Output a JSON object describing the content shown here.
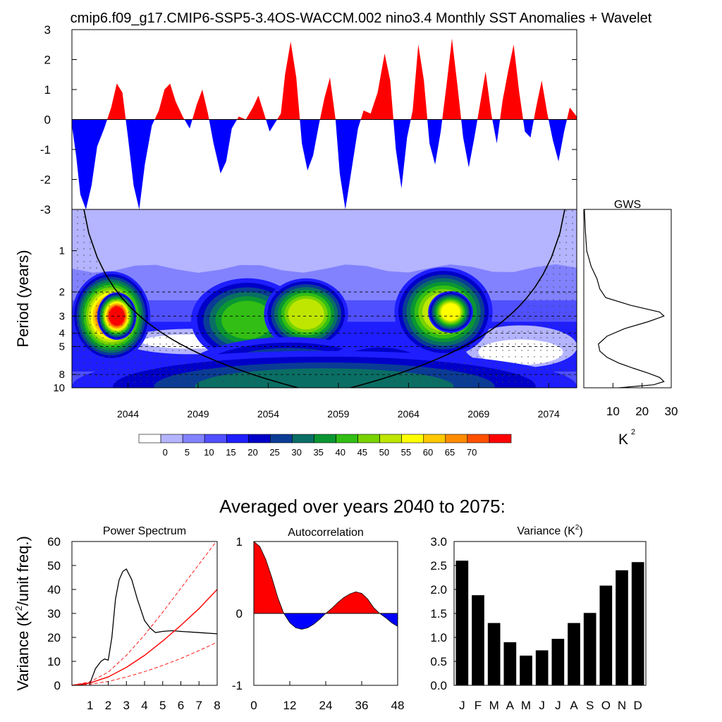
{
  "figure": {
    "title": "cmip6.f09_g17.CMIP6-SSP5-3.4OS-WACCM.002 nino3.4 Monthly SST Anomalies + Wavelet",
    "bottom_title": "Averaged over years 2040 to 2075:"
  },
  "chart_data": [
    {
      "id": "anomaly",
      "type": "area",
      "title": "Monthly SST Anomalies",
      "xlim": [
        2040,
        2076
      ],
      "ylim": [
        -3,
        3
      ],
      "yticks": [
        "3",
        "2",
        "1",
        "0",
        "-1",
        "-2",
        "-3"
      ],
      "ytick_values": [
        3,
        2,
        1,
        0,
        -1,
        -2,
        -3
      ],
      "positive_color": "#ff0000",
      "negative_color": "#0000ff",
      "x": [
        2040.0,
        2040.3,
        2040.6,
        2041.0,
        2041.4,
        2041.8,
        2042.3,
        2042.8,
        2043.2,
        2043.6,
        2044.0,
        2044.4,
        2044.8,
        2045.2,
        2045.7,
        2046.2,
        2046.6,
        2047.0,
        2047.4,
        2047.9,
        2048.4,
        2048.9,
        2049.3,
        2049.7,
        2050.1,
        2050.6,
        2051.0,
        2051.4,
        2051.9,
        2052.4,
        2052.9,
        2053.3,
        2053.7,
        2054.1,
        2054.5,
        2054.9,
        2055.2,
        2055.6,
        2056.0,
        2056.4,
        2056.8,
        2057.2,
        2057.6,
        2058.0,
        2058.4,
        2058.8,
        2059.1,
        2059.5,
        2060.0,
        2060.4,
        2060.8,
        2061.3,
        2061.8,
        2062.3,
        2062.7,
        2063.1,
        2063.5,
        2063.9,
        2064.3,
        2064.7,
        2065.1,
        2065.5,
        2065.9,
        2066.3,
        2066.7,
        2067.1,
        2067.5,
        2067.9,
        2068.3,
        2068.7,
        2069.1,
        2069.5,
        2069.9,
        2070.3,
        2070.7,
        2071.1,
        2071.5,
        2071.9,
        2072.3,
        2072.7,
        2073.1,
        2073.5,
        2073.9,
        2074.3,
        2074.7,
        2075.1,
        2075.5,
        2076.0
      ],
      "values": [
        -0.2,
        -1.2,
        -2.5,
        -3.0,
        -2.2,
        -0.9,
        -0.3,
        0.4,
        1.2,
        0.9,
        -0.6,
        -2.2,
        -3.0,
        -1.5,
        -0.2,
        0.3,
        1.0,
        1.2,
        0.6,
        0.1,
        -0.3,
        0.5,
        1.0,
        0.2,
        -0.8,
        -1.8,
        -1.4,
        -0.3,
        0.1,
        0.0,
        0.4,
        0.8,
        0.2,
        -0.4,
        -0.1,
        0.2,
        1.5,
        2.6,
        1.4,
        -0.8,
        -1.7,
        -1.2,
        -0.2,
        0.7,
        1.4,
        0.0,
        -1.8,
        -3.0,
        -1.5,
        -0.3,
        0.3,
        0.2,
        0.9,
        2.2,
        1.3,
        -1.0,
        -2.3,
        -0.6,
        0.3,
        2.5,
        1.3,
        -0.8,
        -1.5,
        -0.4,
        1.1,
        2.7,
        1.1,
        -0.6,
        -1.6,
        -0.6,
        0.5,
        1.6,
        0.2,
        -0.8,
        0.6,
        1.6,
        2.5,
        0.9,
        -0.4,
        -0.6,
        0.4,
        1.3,
        0.2,
        -0.7,
        -1.4,
        -0.4,
        0.4,
        0.1
      ]
    },
    {
      "id": "wavelet",
      "type": "heatmap",
      "ylabel": "Period (years)",
      "xlim": [
        2040,
        2076
      ],
      "xticks": [
        "2044",
        "2049",
        "2054",
        "2059",
        "2064",
        "2069",
        "2074"
      ],
      "xtick_values": [
        2044,
        2049,
        2054,
        2059,
        2064,
        2069,
        2074
      ],
      "yticks": [
        "1",
        "2",
        "3",
        "4",
        "5",
        "8",
        "10"
      ],
      "ytick_values": [
        1,
        2,
        3,
        4,
        5,
        8,
        10
      ],
      "period_range": [
        0.5,
        10
      ],
      "cone_of_influence": true,
      "blobs": [
        {
          "x": 2042.8,
          "p": 3.0,
          "rx": 2.8,
          "ry": 0.75,
          "level": 14
        },
        {
          "x": 2043.2,
          "p": 3.0,
          "rx": 1.4,
          "ry": 0.4,
          "level": 16
        },
        {
          "x": 2052.5,
          "p": 3.2,
          "rx": 4.0,
          "ry": 0.7,
          "level": 9
        },
        {
          "x": 2056.7,
          "p": 2.9,
          "rx": 3.0,
          "ry": 0.6,
          "level": 11
        },
        {
          "x": 2066.5,
          "p": 2.8,
          "rx": 3.5,
          "ry": 0.75,
          "level": 11
        },
        {
          "x": 2067.0,
          "p": 2.8,
          "rx": 1.6,
          "ry": 0.35,
          "level": 12
        },
        {
          "x": 2055.5,
          "p": 8.6,
          "rx": 8.0,
          "ry": 0.7,
          "level": 8
        },
        {
          "x": 2062.0,
          "p": 8.4,
          "rx": 4.5,
          "ry": 0.6,
          "level": 7
        },
        {
          "x": 2058.0,
          "p": 9.8,
          "rx": 18.0,
          "ry": 0.6,
          "level": 7
        }
      ],
      "colorbar_labels": [
        "0",
        "5",
        "10",
        "15",
        "20",
        "25",
        "30",
        "35",
        "40",
        "45",
        "50",
        "55",
        "60",
        "65",
        "70"
      ],
      "colors": [
        "#ffffff",
        "#b4b4ff",
        "#8282ff",
        "#5050ff",
        "#1e1eff",
        "#0000c8",
        "#0a3c96",
        "#0a6e64",
        "#0a9632",
        "#32be14",
        "#78d200",
        "#bee600",
        "#ffff00",
        "#ffc800",
        "#ff8c00",
        "#ff5000",
        "#ff0000"
      ]
    },
    {
      "id": "gws",
      "type": "line",
      "title": "GWS",
      "xlabel": "K",
      "xlabel_sup": "2",
      "xticks": [
        "10",
        "20",
        "30"
      ],
      "xtick_values": [
        10,
        20,
        30
      ],
      "xlim": [
        0,
        30
      ],
      "period": [
        0.5,
        0.7,
        1.0,
        1.3,
        1.6,
        1.9,
        2.2,
        2.5,
        2.8,
        3.0,
        3.3,
        3.7,
        4.2,
        4.8,
        5.4,
        6.0,
        6.6,
        7.2,
        7.8,
        8.4,
        9.0,
        9.5,
        10.0
      ],
      "values": [
        0.2,
        0.5,
        1.0,
        2.5,
        4.5,
        5.5,
        7.5,
        16.0,
        26.0,
        27.5,
        22.0,
        14.0,
        8.0,
        5.0,
        5.5,
        8.0,
        12.0,
        17.0,
        22.0,
        26.0,
        27.5,
        24.0,
        12.0
      ]
    },
    {
      "id": "power",
      "type": "line",
      "title": "Power Spectrum",
      "ylabel": "Variance (K",
      "ylabel_sup": "2",
      "ylabel_end": "/unit freq.)",
      "xlim": [
        0,
        8
      ],
      "ylim": [
        0,
        60
      ],
      "xticks": [
        "1",
        "2",
        "3",
        "4",
        "5",
        "6",
        "7",
        "8"
      ],
      "xtick_values": [
        1,
        2,
        3,
        4,
        5,
        6,
        7,
        8
      ],
      "yticks": [
        "0",
        "10",
        "20",
        "30",
        "40",
        "50",
        "60"
      ],
      "ytick_values": [
        0,
        10,
        20,
        30,
        40,
        50,
        60
      ],
      "series": [
        {
          "name": "spectrum",
          "x": [
            0,
            0.5,
            1.0,
            1.3,
            1.6,
            1.8,
            2.0,
            2.2,
            2.4,
            2.6,
            2.8,
            3.0,
            3.3,
            3.6,
            4.0,
            4.3,
            4.6,
            5.0,
            5.5,
            6.0,
            7.0,
            8.0
          ],
          "y": [
            0,
            0.3,
            1.0,
            7.0,
            10.0,
            11.0,
            10.5,
            20.0,
            36.0,
            44.0,
            47.5,
            48.5,
            44.0,
            36.0,
            27.0,
            24.0,
            22.0,
            22.5,
            22.8,
            22.5,
            22.0,
            21.5
          ]
        },
        {
          "name": "red-noise",
          "x": [
            0,
            1,
            2,
            3,
            4,
            5,
            6,
            7,
            8
          ],
          "y": [
            0,
            1.0,
            3.5,
            7.5,
            12.5,
            18.5,
            25.0,
            32.0,
            40.0
          ]
        },
        {
          "name": "upper-95",
          "x": [
            0,
            1,
            2,
            3,
            4,
            5,
            6,
            7,
            8
          ],
          "y": [
            0,
            1.5,
            5.5,
            12.5,
            21.0,
            30.5,
            40.5,
            50.5,
            60.5
          ]
        },
        {
          "name": "lower-95",
          "x": [
            0,
            1,
            2,
            3,
            4,
            5,
            6,
            7,
            8
          ],
          "y": [
            0,
            0.5,
            1.6,
            3.5,
            5.7,
            8.3,
            11.2,
            14.5,
            18.0
          ]
        }
      ]
    },
    {
      "id": "autocorr",
      "type": "area",
      "title": "Autocorrelation",
      "xlim": [
        0,
        48
      ],
      "ylim": [
        -1,
        1
      ],
      "xticks": [
        "0",
        "12",
        "24",
        "36",
        "48"
      ],
      "xtick_values": [
        0,
        12,
        24,
        36,
        48
      ],
      "yticks": [
        "1",
        "0",
        "-1"
      ],
      "ytick_values": [
        1,
        0,
        -1
      ],
      "positive_color": "#ff0000",
      "negative_color": "#0000ff",
      "x": [
        0,
        2,
        4,
        6,
        8,
        10,
        12,
        14,
        16,
        18,
        20,
        22,
        24,
        26,
        28,
        30,
        32,
        34,
        36,
        38,
        40,
        42,
        44,
        46,
        48
      ],
      "values": [
        1.0,
        0.93,
        0.75,
        0.5,
        0.22,
        0.0,
        -0.13,
        -0.2,
        -0.22,
        -0.2,
        -0.15,
        -0.08,
        0.0,
        0.07,
        0.15,
        0.22,
        0.27,
        0.3,
        0.28,
        0.2,
        0.08,
        0.0,
        -0.06,
        -0.13,
        -0.18
      ]
    },
    {
      "id": "variance",
      "type": "bar",
      "title": "Variance (K",
      "title_sup": "2",
      "title_end": ")",
      "ylim": [
        0,
        3
      ],
      "yticks": [
        "3.0",
        "2.5",
        "2.0",
        "1.5",
        "1.0",
        "0.5",
        "0.0"
      ],
      "ytick_values": [
        3.0,
        2.5,
        2.0,
        1.5,
        1.0,
        0.5,
        0.0
      ],
      "categories": [
        "J",
        "F",
        "M",
        "A",
        "M",
        "J",
        "J",
        "A",
        "S",
        "O",
        "N",
        "D"
      ],
      "values": [
        2.6,
        1.88,
        1.3,
        0.9,
        0.62,
        0.73,
        0.97,
        1.3,
        1.51,
        2.08,
        2.4,
        2.57
      ]
    }
  ]
}
